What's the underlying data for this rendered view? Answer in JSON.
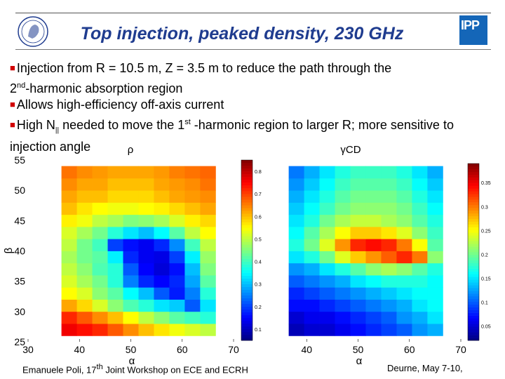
{
  "title": "Top injection, peaked density, 230 GHz",
  "bullets": [
    {
      "parts": [
        "Injection from R = 10.5 m, Z = 3.5 m to reduce the path through the ",
        "",
        "2",
        "nd",
        "-harmonic absorption region"
      ]
    },
    {
      "text": "Allows high-efficiency off-axis current"
    },
    {
      "pre": "High N",
      "sub": "||",
      "mid": " needed to move the 1",
      "sup": "st",
      "post": " -harmonic region to larger R; more sensitive to injection angle"
    }
  ],
  "footer": {
    "left_pre": "Emanuele Poli, 17",
    "left_sup": "th",
    "left_post": " Joint Workshop on ECE and ECRH",
    "right": "Deurne, May 7-10,"
  },
  "colors": {
    "title": "#1f3c8f",
    "bullet": "#d10000",
    "logo": "#1466b8"
  },
  "chart_data": [
    {
      "type": "heatmap",
      "title": "ρ",
      "xlabel": "α",
      "ylabel": "β",
      "x_ticks": [
        30,
        40,
        50,
        60,
        70
      ],
      "y_ticks": [
        25,
        30,
        35,
        40,
        45,
        50,
        55
      ],
      "x_range": [
        30,
        70
      ],
      "y_range": [
        25,
        55
      ],
      "x_centers": [
        38,
        41,
        44,
        47,
        50,
        53,
        56,
        59,
        62,
        65
      ],
      "y_centers": [
        27,
        29,
        31,
        33,
        35,
        37,
        39,
        41,
        43,
        45,
        47,
        49,
        51,
        53
      ],
      "colorbar_ticks": [
        0.1,
        0.2,
        0.3,
        0.4,
        0.5,
        0.6,
        0.7,
        0.8
      ],
      "colorbar_range": [
        0.05,
        0.85
      ],
      "z_rows_bottom_to_top": [
        [
          0.76,
          0.74,
          0.72,
          0.68,
          0.64,
          0.6,
          0.57,
          0.54,
          0.52,
          0.5
        ],
        [
          0.72,
          0.68,
          0.64,
          0.6,
          0.55,
          0.5,
          0.46,
          0.42,
          0.4,
          0.38
        ],
        [
          0.62,
          0.58,
          0.52,
          0.46,
          0.41,
          0.38,
          0.33,
          0.31,
          0.22,
          0.33
        ],
        [
          0.55,
          0.52,
          0.46,
          0.42,
          0.35,
          0.3,
          0.22,
          0.17,
          0.25,
          0.38
        ],
        [
          0.52,
          0.48,
          0.44,
          0.38,
          0.25,
          0.18,
          0.15,
          0.18,
          0.28,
          0.42
        ],
        [
          0.5,
          0.46,
          0.41,
          0.38,
          0.22,
          0.15,
          0.12,
          0.16,
          0.3,
          0.45
        ],
        [
          0.48,
          0.44,
          0.42,
          0.34,
          0.18,
          0.14,
          0.13,
          0.2,
          0.34,
          0.47
        ],
        [
          0.5,
          0.44,
          0.4,
          0.2,
          0.16,
          0.14,
          0.18,
          0.26,
          0.4,
          0.5
        ],
        [
          0.52,
          0.48,
          0.44,
          0.38,
          0.33,
          0.3,
          0.35,
          0.42,
          0.5,
          0.55
        ],
        [
          0.56,
          0.54,
          0.5,
          0.48,
          0.45,
          0.46,
          0.48,
          0.52,
          0.56,
          0.58
        ],
        [
          0.6,
          0.57,
          0.55,
          0.54,
          0.54,
          0.55,
          0.56,
          0.58,
          0.6,
          0.62
        ],
        [
          0.62,
          0.6,
          0.6,
          0.58,
          0.58,
          0.58,
          0.6,
          0.62,
          0.63,
          0.64
        ],
        [
          0.64,
          0.62,
          0.62,
          0.6,
          0.6,
          0.6,
          0.62,
          0.63,
          0.64,
          0.66
        ],
        [
          0.66,
          0.64,
          0.63,
          0.62,
          0.62,
          0.62,
          0.63,
          0.65,
          0.66,
          0.67
        ]
      ]
    },
    {
      "type": "heatmap",
      "title": "γCD",
      "xlabel": "α",
      "ylabel": "",
      "x_ticks": [
        40,
        50,
        60,
        70
      ],
      "y_ticks": [],
      "x_range": [
        30,
        70
      ],
      "y_range": [
        25,
        55
      ],
      "x_centers": [
        38,
        41,
        44,
        47,
        50,
        53,
        56,
        59,
        62,
        65
      ],
      "y_centers": [
        27,
        29,
        31,
        33,
        35,
        37,
        39,
        41,
        43,
        45,
        47,
        49,
        51,
        53
      ],
      "colorbar_ticks": [
        0.05,
        0.1,
        0.15,
        0.2,
        0.25,
        0.3,
        0.35
      ],
      "colorbar_range": [
        0.02,
        0.39
      ],
      "z_rows_bottom_to_top": [
        [
          0.04,
          0.05,
          0.05,
          0.06,
          0.07,
          0.08,
          0.09,
          0.1,
          0.12,
          0.13
        ],
        [
          0.05,
          0.06,
          0.06,
          0.07,
          0.08,
          0.09,
          0.1,
          0.12,
          0.13,
          0.15
        ],
        [
          0.07,
          0.07,
          0.08,
          0.09,
          0.1,
          0.11,
          0.12,
          0.13,
          0.15,
          0.16
        ],
        [
          0.08,
          0.09,
          0.1,
          0.11,
          0.12,
          0.13,
          0.14,
          0.15,
          0.16,
          0.16
        ],
        [
          0.1,
          0.11,
          0.12,
          0.13,
          0.15,
          0.16,
          0.17,
          0.17,
          0.17,
          0.16
        ],
        [
          0.12,
          0.13,
          0.15,
          0.17,
          0.19,
          0.21,
          0.22,
          0.21,
          0.19,
          0.17
        ],
        [
          0.15,
          0.17,
          0.2,
          0.24,
          0.27,
          0.29,
          0.31,
          0.33,
          0.3,
          0.21
        ],
        [
          0.17,
          0.2,
          0.24,
          0.29,
          0.33,
          0.34,
          0.33,
          0.3,
          0.25,
          0.19
        ],
        [
          0.16,
          0.19,
          0.22,
          0.25,
          0.27,
          0.27,
          0.26,
          0.24,
          0.21,
          0.18
        ],
        [
          0.15,
          0.17,
          0.2,
          0.22,
          0.23,
          0.23,
          0.22,
          0.21,
          0.19,
          0.17
        ],
        [
          0.14,
          0.16,
          0.18,
          0.2,
          0.21,
          0.21,
          0.21,
          0.2,
          0.18,
          0.16
        ],
        [
          0.13,
          0.15,
          0.17,
          0.19,
          0.2,
          0.2,
          0.2,
          0.19,
          0.17,
          0.15
        ],
        [
          0.12,
          0.14,
          0.16,
          0.18,
          0.19,
          0.19,
          0.19,
          0.18,
          0.16,
          0.14
        ],
        [
          0.11,
          0.13,
          0.15,
          0.17,
          0.18,
          0.18,
          0.18,
          0.17,
          0.15,
          0.13
        ]
      ]
    }
  ]
}
